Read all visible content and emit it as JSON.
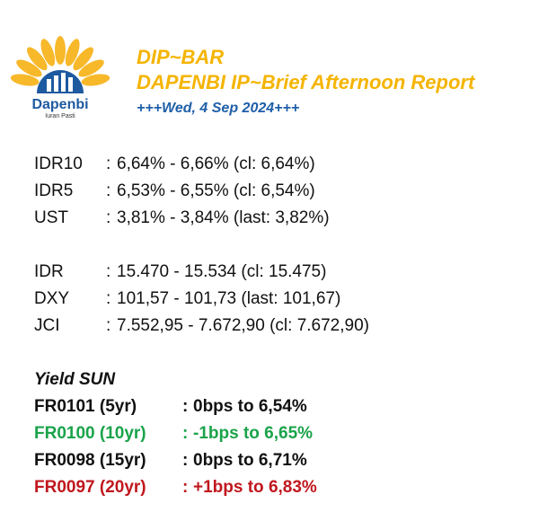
{
  "logo": {
    "brand": "Dapenbi",
    "tagline": "Iuran Pasti"
  },
  "header": {
    "title": "DIP~BAR",
    "subtitle": "DAPENBI IP~Brief Afternoon Report",
    "date": "+++Wed, 4 Sep 2024+++"
  },
  "yields": [
    {
      "key": "IDR10",
      "value": "6,64% - 6,66% (cl: 6,64%)"
    },
    {
      "key": "IDR5",
      "value": "6,53% - 6,55% (cl: 6,54%)"
    },
    {
      "key": "UST",
      "value": "3,81% - 3,84% (last: 3,82%)"
    }
  ],
  "markets": [
    {
      "key": "IDR",
      "value": "15.470 - 15.534 (cl: 15.475)"
    },
    {
      "key": "DXY",
      "value": "101,57 - 101,73 (last: 101,67)"
    },
    {
      "key": "JCI",
      "value": "7.552,95 - 7.672,90 (cl: 7.672,90)"
    }
  ],
  "yield_sun": {
    "title": "Yield SUN",
    "items": [
      {
        "key": "FR0101 (5yr)",
        "change": "0bps to ",
        "level": "6,54%",
        "color": "#111111"
      },
      {
        "key": "FR0100 (10yr)",
        "change": "-1bps to ",
        "level": "6,65%",
        "color": "#1aa34a"
      },
      {
        "key": "FR0098 (15yr)",
        "change": "0bps to ",
        "level": "6,71%",
        "color": "#111111"
      },
      {
        "key": "FR0097 (20yr)",
        "change": "+1bps to ",
        "level": "6,83%",
        "color": "#c0171d"
      }
    ]
  },
  "separator": ":"
}
